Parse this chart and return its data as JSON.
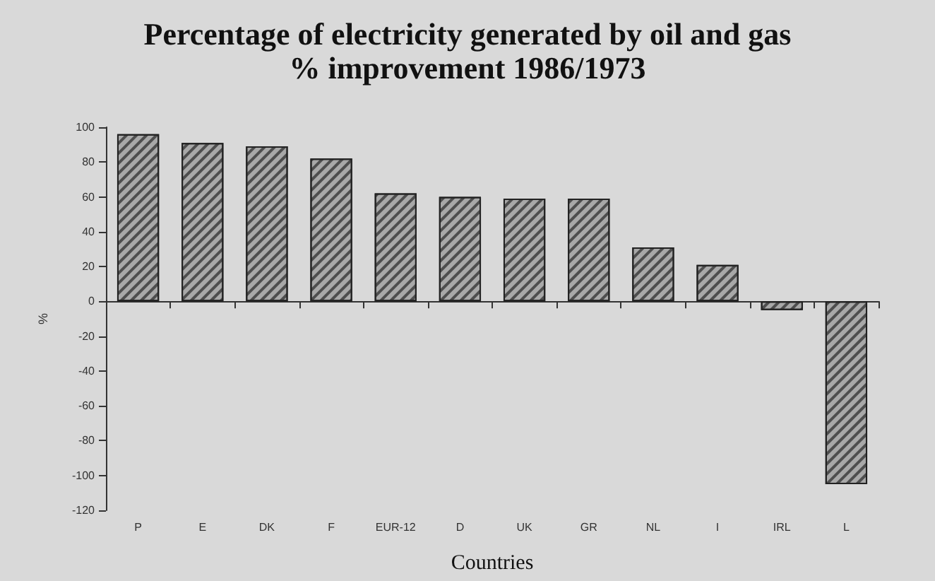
{
  "chart_data": {
    "type": "bar",
    "title": "Percentage of electricity generated by oil and gas",
    "subtitle": "% improvement 1986/1973",
    "xlabel": "Countries",
    "ylabel": "%",
    "categories": [
      "P",
      "E",
      "DK",
      "F",
      "EUR-12",
      "D",
      "UK",
      "GR",
      "NL",
      "I",
      "IRL",
      "L"
    ],
    "values": [
      96,
      91,
      89,
      82,
      62,
      60,
      59,
      59,
      31,
      21,
      -5,
      -105
    ],
    "color": "#a8a8a8",
    "ylim": [
      -120,
      100
    ],
    "yticks": [
      -120,
      -100,
      -80,
      -60,
      -40,
      -20,
      0,
      20,
      40,
      60,
      80,
      100
    ]
  }
}
